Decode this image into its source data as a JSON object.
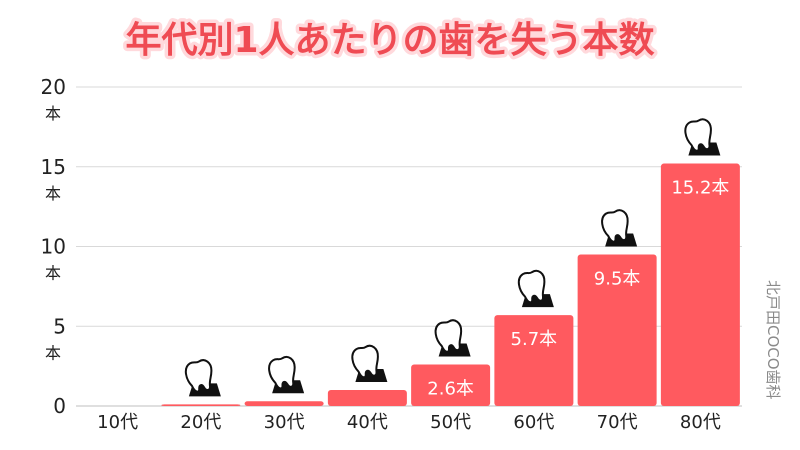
{
  "chart_data": {
    "type": "bar",
    "title": "年代別1人あたりの歯を失う本数",
    "categories": [
      "10代",
      "20代",
      "30代",
      "40代",
      "50代",
      "60代",
      "70代",
      "80代"
    ],
    "values": [
      0,
      0.1,
      0.3,
      1.0,
      2.6,
      5.7,
      9.5,
      15.2
    ],
    "value_labels": [
      "",
      "",
      "",
      "",
      "2.6本",
      "5.7本",
      "9.5本",
      "15.2本"
    ],
    "ylim": [
      0,
      20
    ],
    "y_ticks": [
      {
        "value": 0,
        "num": "0",
        "unit": ""
      },
      {
        "value": 5,
        "num": "5",
        "unit": "本"
      },
      {
        "value": 10,
        "num": "10",
        "unit": "本"
      },
      {
        "value": 15,
        "num": "15",
        "unit": "本"
      },
      {
        "value": 20,
        "num": "20",
        "unit": "本"
      }
    ],
    "grid": true,
    "bar_color": "#ff5a5f",
    "title_color": "#ef4b53",
    "icon": "tooth-icon"
  },
  "watermark": "北戸田COCO歯科"
}
